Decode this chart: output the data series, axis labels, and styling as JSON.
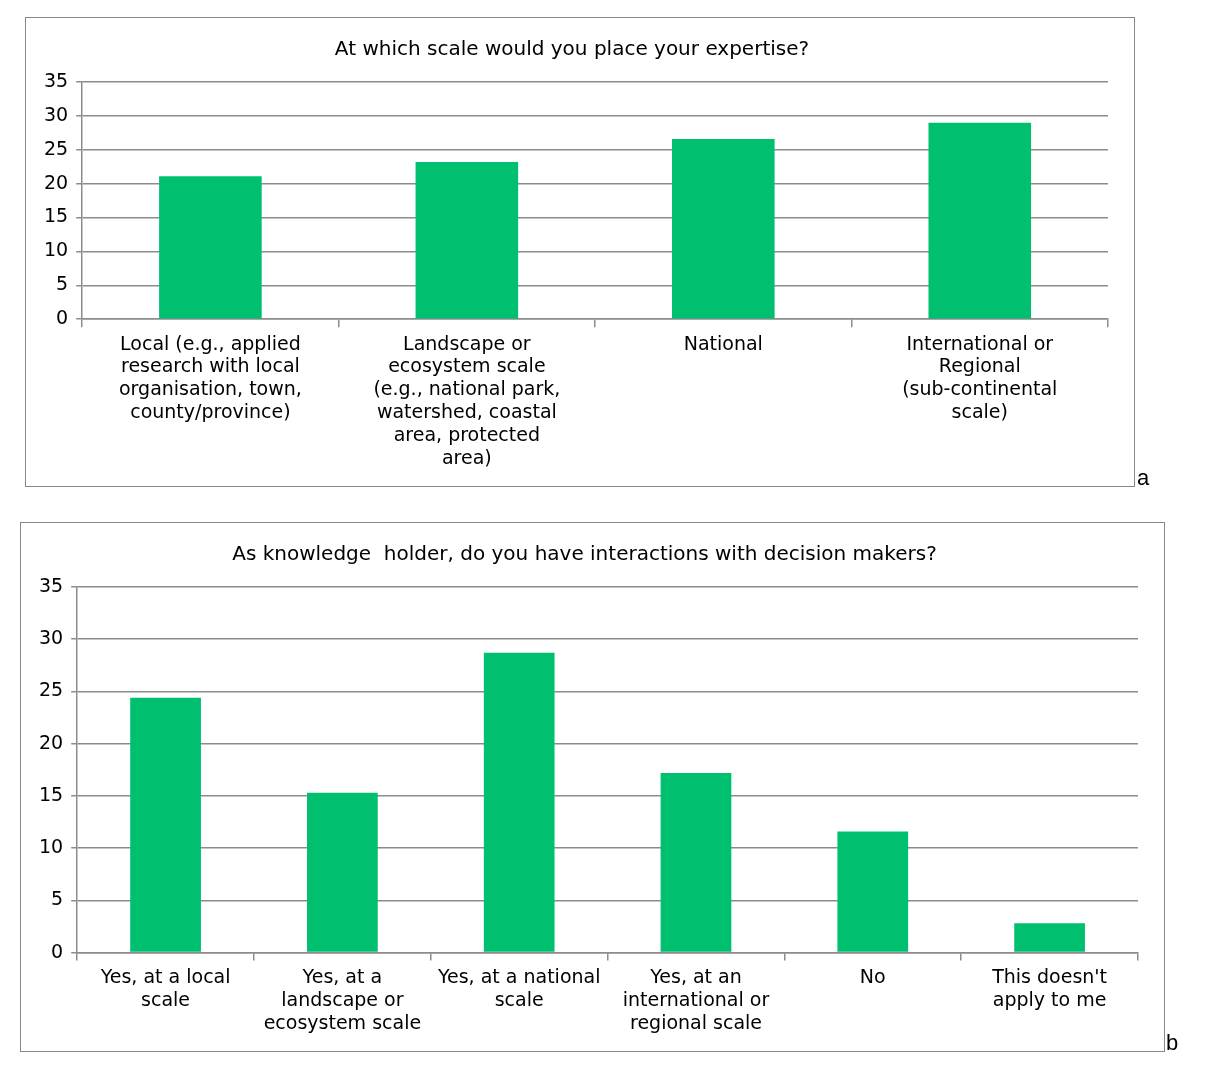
{
  "chart_data": [
    {
      "type": "bar",
      "title": "At which scale would you place your expertise?",
      "categories": [
        "Local (e.g., applied research with local organisation, town, county/province)",
        "Landscape or ecosystem scale (e.g., national park, watershed, coastal area, protected area)",
        "National",
        "International or Regional (sub-continental scale)"
      ],
      "values": [
        21.1,
        23.2,
        26.6,
        29
      ],
      "color": "#00bf6f",
      "ylim": [
        0,
        35
      ],
      "yticks": [
        0,
        5,
        10,
        15,
        20,
        25,
        30,
        35
      ],
      "grid": "y",
      "legend": false,
      "annotations": [
        "a"
      ]
    },
    {
      "type": "bar",
      "title": "As knowledge  holder, do you have interactions with decision makers?",
      "categories": [
        "Yes, at a local scale",
        "Yes, at a landscape or ecosystem scale",
        "Yes, at a national scale",
        "Yes, at an international or regional scale",
        "No",
        "This doesn't apply to me"
      ],
      "values": [
        24.4,
        15.3,
        28.7,
        17.2,
        11.6,
        2.8
      ],
      "color": "#00bf6f",
      "ylim": [
        0,
        35
      ],
      "yticks": [
        0,
        5,
        10,
        15,
        20,
        25,
        30,
        35
      ],
      "grid": "y",
      "legend": false,
      "annotations": [
        "b"
      ]
    }
  ]
}
